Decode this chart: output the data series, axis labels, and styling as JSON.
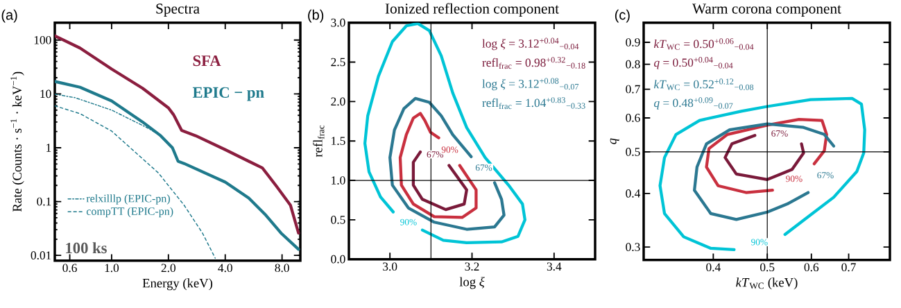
{
  "chart_data": [
    {
      "type": "line",
      "title": "Spectra",
      "xlabel": "Energy (keV)",
      "ylabel": "Rate (Counts · s$^{−1}$ · keV$^{−1}$)",
      "log": "xy",
      "xlim": [
        0.5,
        10
      ],
      "ylim": [
        0.008,
        210
      ],
      "xticks": [
        0.6,
        {
          "value": 1,
          "label": "1.0"
        },
        {
          "value": 2,
          "label": "2.0"
        },
        {
          "value": 4,
          "label": "4.0"
        },
        {
          "value": 8,
          "label": "8.0"
        }
      ],
      "yticks": [
        0.01,
        0.1,
        1,
        10,
        100
      ],
      "legend": "bottom left",
      "annotations": [
        "(a)",
        "SFA",
        "EPIC − pn",
        "100 ks"
      ],
      "series": [
        {
          "color": "#8b1e3f",
          "x": [
            0.5,
            0.68,
            1.0,
            1.46,
            2.0,
            2.13,
            2.35,
            2.79,
            4.0,
            5.33,
            6.3,
            7.5,
            8.86,
            9.78
          ],
          "values": [
            120,
            71,
            29,
            12.7,
            5.5,
            4.1,
            2.1,
            1.67,
            0.92,
            0.56,
            0.42,
            0.19,
            0.086,
            0.026
          ]
        },
        {
          "color": "#1f7a8c",
          "x": [
            0.5,
            0.68,
            1.0,
            1.46,
            1.82,
            2.1,
            2.25,
            2.42,
            4.0,
            5.33,
            6.5,
            7.9,
            9.78
          ],
          "values": [
            17,
            13.3,
            7.4,
            3.0,
            1.67,
            1.0,
            0.56,
            0.51,
            0.23,
            0.116,
            0.058,
            0.026,
            0.013
          ]
        },
        {
          "name": "relxilllp (EPIC-pn)",
          "color": "#1f7a8c",
          "line_style": "dashdot",
          "x": [
            0.5,
            0.64,
            1.0,
            1.54,
            1.82
          ],
          "values": [
            9.9,
            8.5,
            5.0,
            2.36,
            1.67
          ]
        },
        {
          "name": "compTT (EPIC-pn)",
          "color": "#1f7a8c",
          "line_style": "dashed",
          "x": [
            0.5,
            0.68,
            1.0,
            1.37,
            1.77,
            2.42,
            3.03,
            3.54
          ],
          "values": [
            6.0,
            4.3,
            2.04,
            0.76,
            0.34,
            0.086,
            0.026,
            0.0089
          ]
        }
      ]
    },
    {
      "type": "line",
      "title": "Ionized reflection component",
      "xlabel": "log *ξ*",
      "ylabel": "refl$_{frac}$",
      "xlim": [
        2.9,
        3.5
      ],
      "ylim": [
        0,
        3
      ],
      "xticks": [
        {
          "value": 3,
          "label": "3.0"
        },
        3.2,
        3.4
      ],
      "yticks": [
        {
          "value": 0,
          "label": "0.0"
        },
        0.5,
        {
          "value": 1,
          "label": "1.0"
        },
        1.5,
        {
          "value": 2,
          "label": "2.0"
        },
        2.5,
        {
          "value": 3,
          "label": "3.0"
        }
      ],
      "ref_lines": [
        {
          "axis": "x",
          "value": 3.1,
          "color": "#000000"
        },
        {
          "axis": "y",
          "value": 1.0,
          "color": "#000000"
        }
      ],
      "annotations": [
        "(b)",
        "log *ξ* = 3.12$^{+0.04}$$_{−0.04}$",
        "refl$_{frac}$ = 0.98$^{+0.32}$$_{−0.18}$",
        "log *ξ* = 3.12$^{+0.08}$$_{−0.07}$",
        "refl$_{frac}$ = 1.04$^{+0.83}$$_{−0.33}$",
        "67%",
        "90%",
        "67%",
        "90%"
      ],
      "series": [
        {
          "color": "#7a1a3a",
          "x": [
            3.074,
            3.057,
            3.057,
            3.079,
            3.136,
            3.181,
            3.187,
            3.144
          ],
          "values": [
            1.36,
            1.23,
            0.94,
            0.76,
            0.63,
            0.7,
            0.88,
            1.19
          ]
        },
        {
          "color": "#c9303f",
          "x": [
            3.119,
            3.099,
            3.085,
            3.074,
            3.057,
            3.04,
            3.025,
            3.028,
            3.057,
            3.108,
            3.176,
            3.21,
            3.21,
            3.17
          ],
          "values": [
            1.54,
            1.61,
            1.76,
            1.85,
            1.79,
            1.58,
            1.29,
            0.94,
            0.7,
            0.54,
            0.53,
            0.65,
            0.88,
            1.19
          ]
        },
        {
          "color": "#2b7891",
          "x": [
            3.255,
            3.272,
            3.278,
            3.255,
            3.187,
            3.108,
            3.045,
            3.006,
            3.0,
            3.011,
            3.034,
            3.062,
            3.096,
            3.125,
            3.153,
            3.198
          ],
          "values": [
            0.97,
            0.76,
            0.56,
            0.41,
            0.38,
            0.47,
            0.65,
            0.94,
            1.29,
            1.64,
            1.91,
            2.04,
            1.99,
            1.82,
            1.58,
            1.3
          ]
        },
        {
          "color": "#00c4d6",
          "x": [
            3.008,
            2.977,
            2.949,
            2.939,
            2.946,
            2.972,
            3.006,
            3.04,
            3.068,
            3.096,
            3.125,
            3.153,
            3.187,
            3.232,
            3.289,
            3.323,
            3.329,
            3.312,
            3.272,
            3.187,
            3.13,
            3.079
          ],
          "values": [
            0.6,
            0.79,
            1.11,
            1.47,
            1.82,
            2.32,
            2.76,
            2.96,
            2.99,
            2.9,
            2.58,
            2.11,
            1.67,
            1.29,
            0.94,
            0.7,
            0.5,
            0.29,
            0.22,
            0.21,
            0.24,
            0.37
          ]
        }
      ]
    },
    {
      "type": "line",
      "title": "Warm corona component",
      "xlabel": "*kT*$_{WC}$ (keV)",
      "ylabel": "*q*",
      "log": "xy",
      "xlim": [
        0.3,
        0.83
      ],
      "ylim": [
        0.28,
        1.0
      ],
      "xticks": [
        0.4,
        0.5,
        0.6,
        0.7
      ],
      "yticks": [
        0.3,
        0.4,
        0.5,
        0.6,
        0.7,
        0.8,
        0.9
      ],
      "ref_lines": [
        {
          "axis": "x",
          "value": 0.5,
          "color": "#000000"
        },
        {
          "axis": "y",
          "value": 0.5,
          "color": "#000000"
        }
      ],
      "annotations": [
        "(c)",
        "*kT*$_{WC}$ = 0.50$^{+0.06}$$_{−0.04}$",
        "*q* = 0.50$^{+0.04}$$_{−0.04}$",
        "*kT*$_{WC}$ = 0.52$^{+0.12}$$_{−0.08}$",
        "*q* = 0.48$^{+0.09}$$_{−0.07}$",
        "67%",
        "90%",
        "67%",
        "90%"
      ],
      "series": [
        {
          "color": "#7a1a3a",
          "x": [
            0.475,
            0.432,
            0.42,
            0.44,
            0.5,
            0.554,
            0.581,
            0.576
          ],
          "values": [
            0.546,
            0.522,
            0.485,
            0.444,
            0.431,
            0.455,
            0.497,
            0.522
          ]
        },
        {
          "color": "#c9303f",
          "x": [
            0.511,
            0.458,
            0.408,
            0.389,
            0.393,
            0.424,
            0.5,
            0.57,
            0.627,
            0.639,
            0.633,
            0.607
          ],
          "values": [
            0.407,
            0.402,
            0.417,
            0.461,
            0.509,
            0.549,
            0.577,
            0.595,
            0.592,
            0.549,
            0.503,
            0.469
          ]
        },
        {
          "color": "#2b7891",
          "x": [
            0.592,
            0.543,
            0.5,
            0.44,
            0.396,
            0.37,
            0.374,
            0.389,
            0.428,
            0.5,
            0.581,
            0.633,
            0.658
          ],
          "values": [
            0.402,
            0.378,
            0.362,
            0.348,
            0.359,
            0.407,
            0.461,
            0.522,
            0.563,
            0.581,
            0.57,
            0.549,
            0.516
          ]
        },
        {
          "color": "#00c4d6",
          "x": [
            0.436,
            0.396,
            0.354,
            0.327,
            0.321,
            0.327,
            0.343,
            0.378,
            0.449,
            0.5,
            0.598,
            0.71,
            0.738,
            0.748,
            0.745,
            0.724,
            0.658,
            0.587,
            0.538
          ],
          "values": [
            0.296,
            0.298,
            0.317,
            0.359,
            0.417,
            0.485,
            0.549,
            0.592,
            0.622,
            0.638,
            0.662,
            0.666,
            0.646,
            0.563,
            0.497,
            0.45,
            0.392,
            0.35,
            0.321
          ]
        }
      ]
    }
  ]
}
